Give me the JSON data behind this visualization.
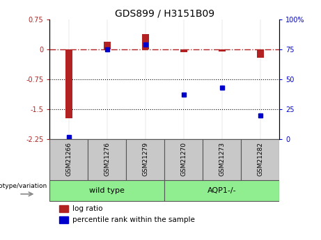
{
  "title": "GDS899 / H3151B09",
  "samples": [
    "GSM21266",
    "GSM21276",
    "GSM21279",
    "GSM21270",
    "GSM21273",
    "GSM21282"
  ],
  "groups": [
    {
      "label": "wild type",
      "indices": [
        0,
        1,
        2
      ],
      "color": "#90EE90"
    },
    {
      "label": "AQP1-/-",
      "indices": [
        3,
        4,
        5
      ],
      "color": "#90EE90"
    }
  ],
  "log_ratio": [
    -1.72,
    0.18,
    0.38,
    -0.07,
    -0.05,
    -0.22
  ],
  "percentile_rank": [
    2.0,
    75.0,
    79.0,
    37.0,
    43.0,
    20.0
  ],
  "ylim_left": [
    -2.25,
    0.75
  ],
  "ylim_right": [
    0,
    100
  ],
  "bar_color": "#B22222",
  "dot_color": "#0000CD",
  "dotted_lines": [
    -0.75,
    -1.5
  ],
  "right_ticks": [
    0,
    25,
    50,
    75,
    100
  ],
  "right_tick_labels": [
    "0",
    "25",
    "50",
    "75",
    "100%"
  ],
  "left_ticks": [
    -2.25,
    -1.5,
    -0.75,
    0,
    0.75
  ],
  "genotype_label": "genotype/variation",
  "legend_log_label": "log ratio",
  "legend_pct_label": "percentile rank within the sample",
  "background_color": "#ffffff",
  "bar_width": 0.18,
  "dot_size": 5,
  "grey_box_color": "#c8c8c8",
  "group_box_color": "#90EE90"
}
